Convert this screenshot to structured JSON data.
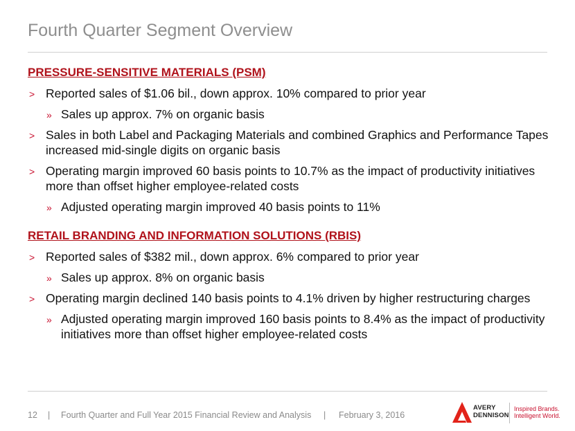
{
  "header": {
    "title": "Fourth Quarter Segment Overview"
  },
  "sections": [
    {
      "heading": "PRESSURE-SENSITIVE MATERIALS (PSM)",
      "items": [
        {
          "marker": ">",
          "text": "Reported sales of $1.06 bil., down approx. 10% compared to prior year",
          "subitems": [
            {
              "marker": "»",
              "text": "Sales up approx. 7% on organic basis"
            }
          ]
        },
        {
          "marker": ">",
          "text": "Sales in both Label and Packaging Materials and combined Graphics and Performance Tapes increased mid-single digits on organic basis",
          "subitems": []
        },
        {
          "marker": ">",
          "text": "Operating margin improved 60 basis points to 10.7% as the impact of productivity initiatives more than offset higher employee-related costs",
          "subitems": [
            {
              "marker": "»",
              "text": "Adjusted operating margin improved 40 basis points to 11%"
            }
          ]
        }
      ]
    },
    {
      "heading": "RETAIL BRANDING AND INFORMATION SOLUTIONS (RBIS)",
      "items": [
        {
          "marker": ">",
          "text": "Reported sales of $382 mil., down approx. 6% compared to prior year",
          "subitems": [
            {
              "marker": "»",
              "text": "Sales up approx. 8% on organic basis"
            }
          ]
        },
        {
          "marker": ">",
          "text": "Operating margin declined 140 basis points to 4.1% driven by higher restructuring charges",
          "subitems": [
            {
              "marker": "»",
              "text": "Adjusted operating margin improved 160 basis points to 8.4% as the impact of productivity initiatives more than offset higher employee-related costs"
            }
          ]
        }
      ]
    }
  ],
  "footer": {
    "page": "12",
    "separator": "|",
    "text": "Fourth Quarter and Full Year 2015 Financial Review and Analysis",
    "date": "February 3, 2016"
  },
  "logo": {
    "brand_lines": [
      "AVERY",
      "DENNISON"
    ],
    "tagline_lines": [
      "Inspired Brands.",
      "Intelligent World."
    ]
  }
}
